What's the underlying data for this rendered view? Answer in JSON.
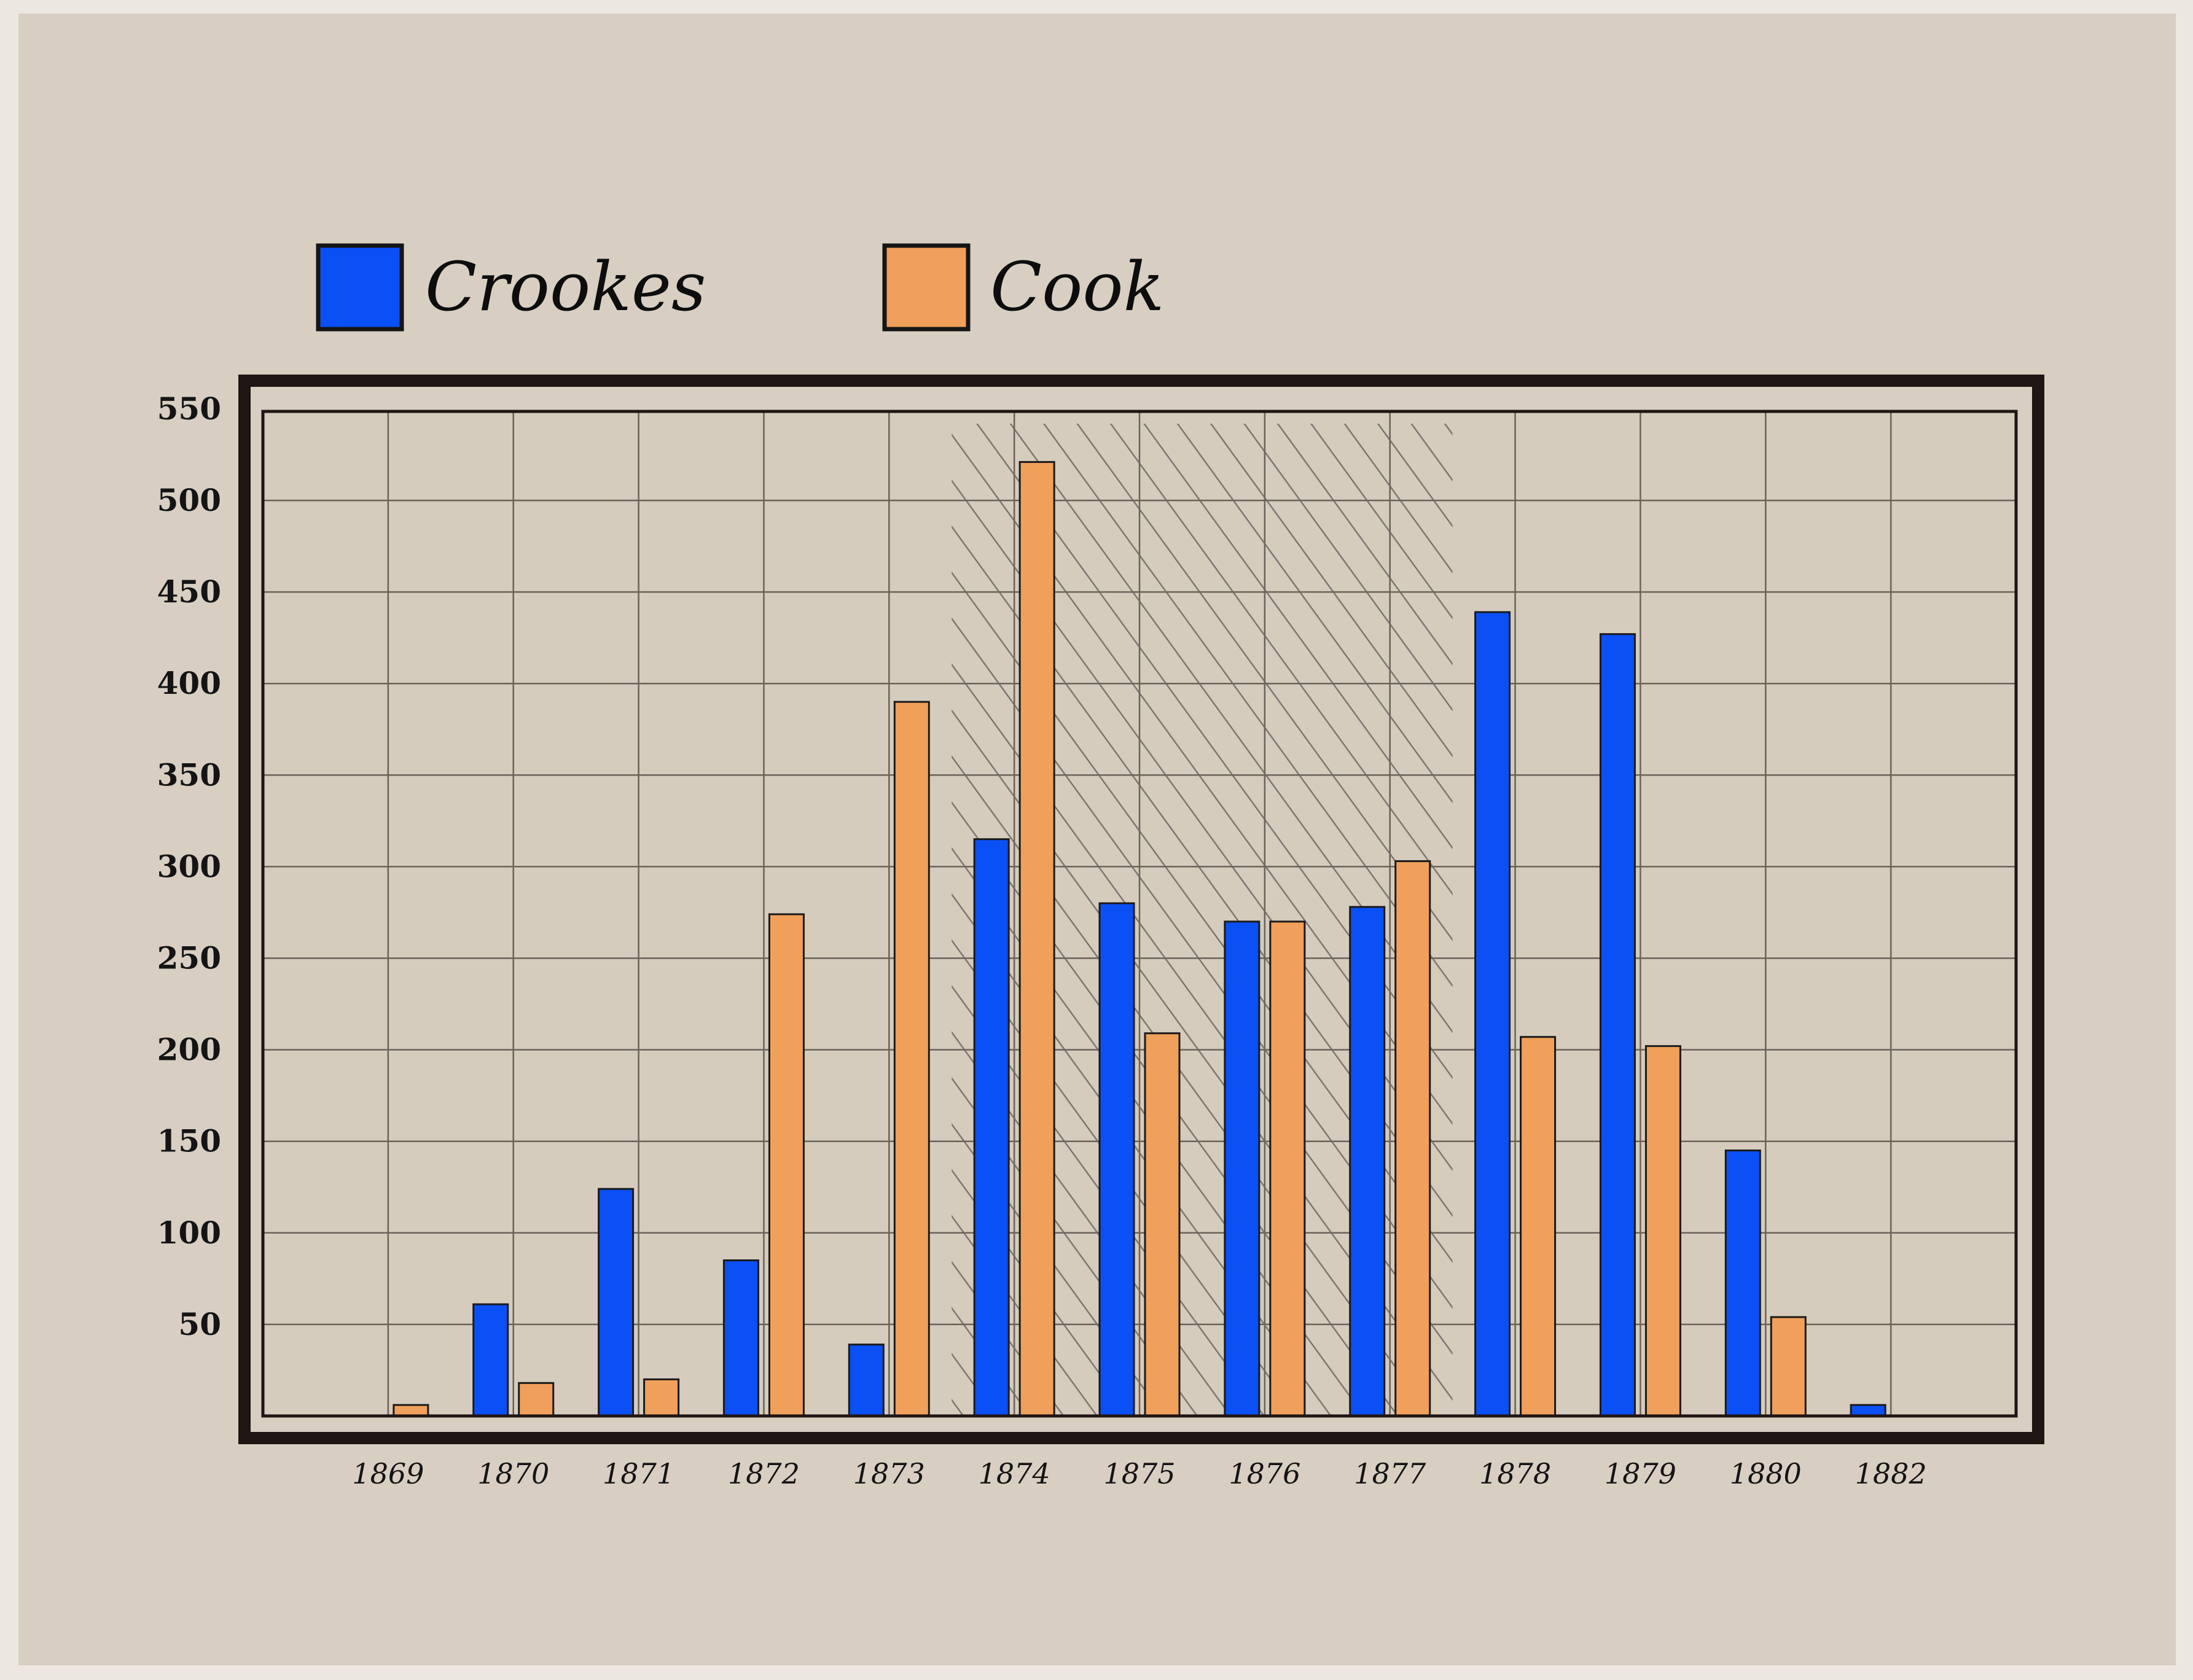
{
  "chart_data": {
    "type": "bar",
    "categories": [
      "1869",
      "1870",
      "1871",
      "1872",
      "1873",
      "1874",
      "1875",
      "1876",
      "1877",
      "1878",
      "1879",
      "1880",
      "1882"
    ],
    "series": [
      {
        "name": "Crookes",
        "color": "#0b50f5",
        "values": [
          0,
          61,
          124,
          85,
          39,
          315,
          280,
          270,
          278,
          439,
          427,
          145,
          6
        ]
      },
      {
        "name": "Cook",
        "color": "#f0a05a",
        "values": [
          6,
          18,
          20,
          274,
          390,
          521,
          209,
          270,
          303,
          207,
          202,
          54,
          0
        ]
      }
    ],
    "yticks": [
      50,
      100,
      150,
      200,
      250,
      300,
      350,
      400,
      450,
      500,
      550
    ],
    "ylim": [
      0,
      550
    ],
    "grid": true,
    "legend": "top-left",
    "highlight": {
      "from": "1874",
      "to": "1877",
      "pattern": "diagonal-hatch"
    },
    "xlabel": "",
    "ylabel": "",
    "title": ""
  },
  "colors": {
    "paper": "#d8cfc2",
    "frame": "#1f1513",
    "grid": "#6b6259"
  }
}
